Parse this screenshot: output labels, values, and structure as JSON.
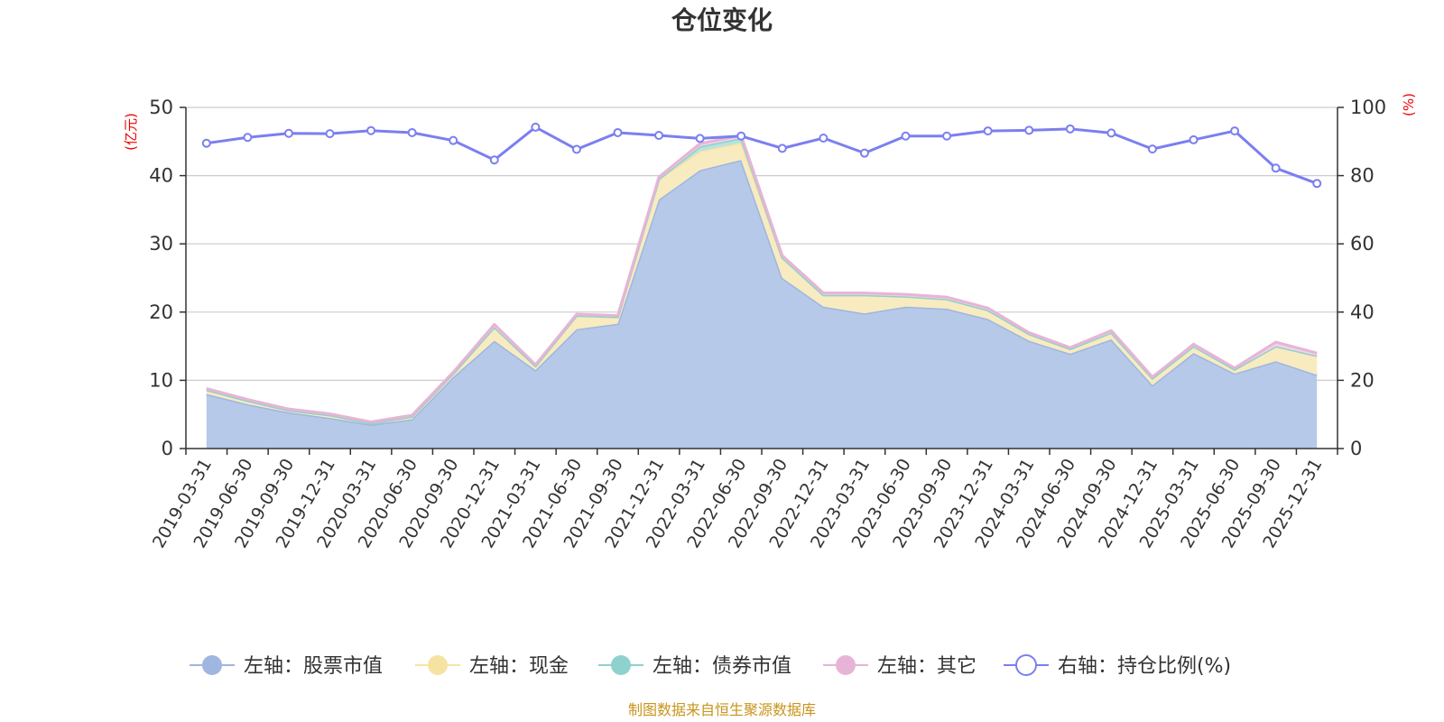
{
  "chart_data": {
    "type": "area",
    "title": "仓位变化",
    "left_axis_unit": "(亿元)",
    "right_axis_unit": "(%)",
    "ylim_left": [
      0,
      50
    ],
    "yticks_left": [
      0,
      10,
      20,
      30,
      40,
      50
    ],
    "ylim_right": [
      0,
      100
    ],
    "yticks_right": [
      0,
      20,
      40,
      60,
      80,
      100
    ],
    "categories": [
      "2019-03-31",
      "2019-06-30",
      "2019-09-30",
      "2019-12-31",
      "2020-03-31",
      "2020-06-30",
      "2020-09-30",
      "2020-12-31",
      "2021-03-31",
      "2021-06-30",
      "2021-09-30",
      "2021-12-31",
      "2022-03-31",
      "2022-06-30",
      "2022-09-30",
      "2022-12-31",
      "2023-03-31",
      "2023-06-30",
      "2023-09-30",
      "2023-12-31",
      "2024-03-31",
      "2024-06-30",
      "2024-09-30",
      "2024-12-31",
      "2025-03-31",
      "2025-06-30",
      "2025-09-30",
      "2025-12-31"
    ],
    "series": [
      {
        "name": "左轴：股票市值",
        "axis": "left",
        "color": "#9eb6e0",
        "fill": "#b6c9e8",
        "values": [
          8.0,
          6.5,
          5.3,
          4.5,
          3.5,
          4.3,
          10.5,
          15.8,
          11.5,
          17.5,
          18.3,
          36.5,
          40.8,
          42.3,
          25.0,
          20.8,
          19.8,
          20.8,
          20.5,
          19.0,
          15.8,
          13.9,
          16.0,
          9.3,
          14.0,
          11.0,
          12.8,
          10.8
        ]
      },
      {
        "name": "左轴：现金",
        "axis": "left",
        "color": "#f7e3a1",
        "fill": "#f8ebc0",
        "values": [
          0.6,
          0.5,
          0.3,
          0.4,
          0.2,
          0.4,
          0.5,
          2.0,
          0.6,
          2.0,
          1.0,
          3.0,
          2.8,
          2.5,
          3.0,
          1.7,
          2.7,
          1.5,
          1.4,
          1.3,
          1.0,
          0.7,
          1.0,
          1.0,
          1.0,
          0.6,
          2.2,
          2.8
        ]
      },
      {
        "name": "左轴：债券市值",
        "axis": "left",
        "color": "#8fd1cc",
        "fill": "#b6e3df",
        "values": [
          0,
          0,
          0,
          0,
          0,
          0,
          0,
          0,
          0,
          0,
          0,
          0,
          0.7,
          0.7,
          0,
          0,
          0,
          0,
          0,
          0,
          0,
          0,
          0,
          0,
          0,
          0,
          0,
          0
        ]
      },
      {
        "name": "左轴：其它",
        "axis": "left",
        "color": "#e8b4d6",
        "fill": "#f1d3e7",
        "values": [
          0.2,
          0.2,
          0.2,
          0.2,
          0.2,
          0.2,
          0.2,
          0.4,
          0.2,
          0.2,
          0.2,
          0.3,
          0.4,
          0.4,
          0.3,
          0.3,
          0.3,
          0.3,
          0.3,
          0.3,
          0.2,
          0.2,
          0.3,
          0.2,
          0.3,
          0.2,
          0.6,
          0.4
        ]
      },
      {
        "name": "右轴：持仓比例(%)",
        "axis": "right",
        "color": "#7b7ff0",
        "values": [
          89.5,
          91.2,
          92.4,
          92.3,
          93.2,
          92.6,
          90.3,
          84.6,
          94.2,
          87.7,
          92.6,
          91.8,
          90.9,
          91.6,
          88.0,
          91.0,
          86.6,
          91.6,
          91.6,
          93.1,
          93.3,
          93.7,
          92.5,
          87.8,
          90.5,
          93.1,
          82.2,
          77.7
        ]
      }
    ]
  },
  "legend": [
    {
      "label": "左轴：股票市值",
      "icon": "filled-circle",
      "color": "#9eb6e0"
    },
    {
      "label": "左轴：现金",
      "icon": "filled-circle",
      "color": "#f7e3a1"
    },
    {
      "label": "左轴：债券市值",
      "icon": "filled-circle",
      "color": "#8fd1cc"
    },
    {
      "label": "左轴：其它",
      "icon": "filled-circle",
      "color": "#e8b4d6"
    },
    {
      "label": "右轴：持仓比例(%)",
      "icon": "hollow-circle",
      "color": "#7b7ff0"
    }
  ],
  "source_note": "制图数据来自恒生聚源数据库"
}
